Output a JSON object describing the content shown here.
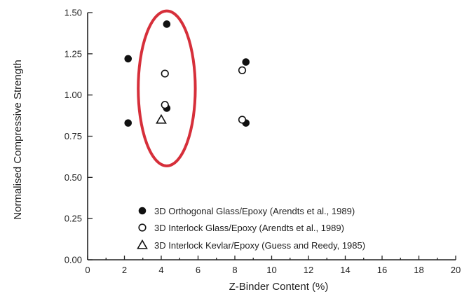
{
  "chart_data": {
    "type": "scatter",
    "xlabel": "Z-Binder Content (%)",
    "ylabel": "Normalised Compressive Strength",
    "xlim": [
      0,
      20
    ],
    "ylim": [
      0.0,
      1.5
    ],
    "xticks": [
      "0",
      "2",
      "4",
      "6",
      "8",
      "10",
      "12",
      "14",
      "16",
      "18",
      "20"
    ],
    "yticks": [
      "0.00",
      "0.25",
      "0.50",
      "0.75",
      "1.00",
      "1.25",
      "1.50"
    ],
    "grid": false,
    "legend_position": "bottom-right",
    "series": [
      {
        "name": "3D Orthogonal Glass/Epoxy (Arendts et al., 1989)",
        "marker": "filled-circle",
        "color": "#111111",
        "points": [
          {
            "x": 2.2,
            "y": 1.22
          },
          {
            "x": 2.2,
            "y": 0.83
          },
          {
            "x": 4.3,
            "y": 1.43
          },
          {
            "x": 4.3,
            "y": 0.92
          },
          {
            "x": 8.6,
            "y": 1.2
          },
          {
            "x": 8.6,
            "y": 0.83
          }
        ]
      },
      {
        "name": "3D Interlock Glass/Epoxy (Arendts et al., 1989)",
        "marker": "open-circle",
        "color": "#111111",
        "points": [
          {
            "x": 4.2,
            "y": 1.13
          },
          {
            "x": 4.2,
            "y": 0.94
          },
          {
            "x": 8.4,
            "y": 1.15
          },
          {
            "x": 8.4,
            "y": 0.85
          }
        ]
      },
      {
        "name": "3D Interlock Kevlar/Epoxy (Guess and Reedy, 1985)",
        "marker": "open-triangle",
        "color": "#111111",
        "points": [
          {
            "x": 4.0,
            "y": 0.85
          }
        ]
      }
    ],
    "annotations": [
      {
        "type": "ellipse",
        "color": "#d62f3a",
        "center": {
          "x": 4.3,
          "y": 1.04
        },
        "radius_x": 1.55,
        "radius_y": 0.47
      }
    ]
  }
}
